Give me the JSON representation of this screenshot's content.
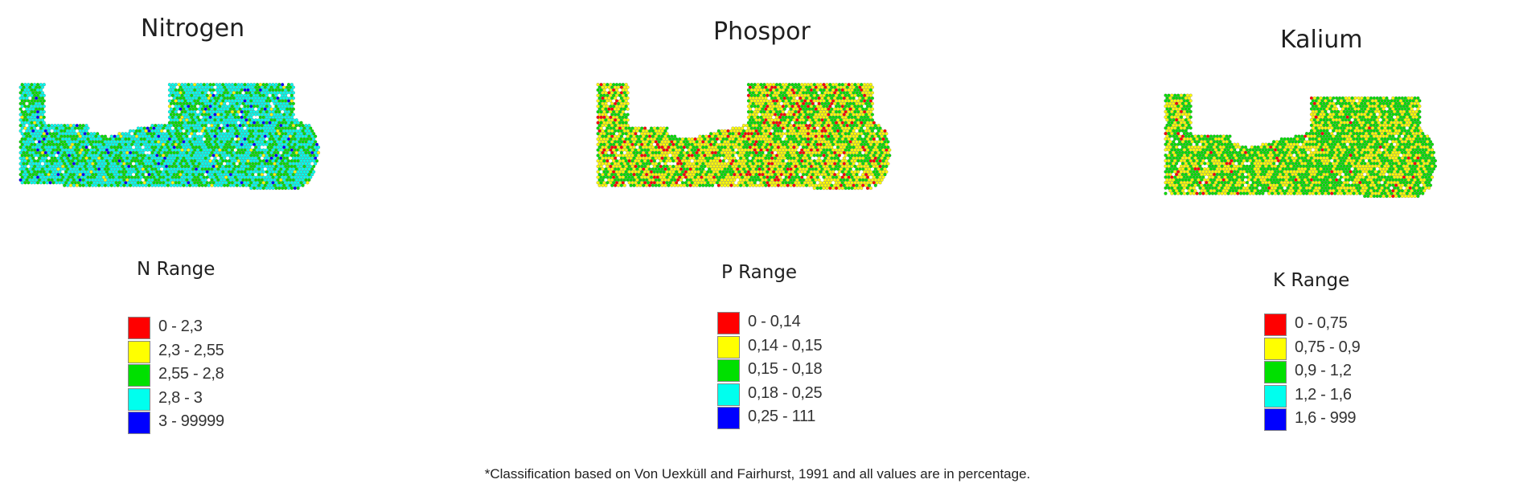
{
  "panels": [
    {
      "id": "nitrogen",
      "title": "Nitrogen",
      "range_title": "N Range",
      "legend": [
        {
          "label": "0 - 2,3",
          "color": "#ff0000"
        },
        {
          "label": "2,3 - 2,55",
          "color": "#ffff00"
        },
        {
          "label": "2,55 - 2,8",
          "color": "#00e000"
        },
        {
          "label": "2,8 - 3",
          "color": "#00ffee"
        },
        {
          "label": "3 - 99999",
          "color": "#0000ff"
        }
      ],
      "map_colors": [
        "#00ffee",
        "#00e000",
        "#0000ff",
        "#ffff00"
      ]
    },
    {
      "id": "phosphor",
      "title": "Phospor",
      "range_title": "P Range",
      "legend": [
        {
          "label": "0 - 0,14",
          "color": "#ff0000"
        },
        {
          "label": "0,14 - 0,15",
          "color": "#ffff00"
        },
        {
          "label": "0,15 - 0,18",
          "color": "#00e000"
        },
        {
          "label": "0,18 - 0,25",
          "color": "#00ffee"
        },
        {
          "label": "0,25 - 111",
          "color": "#0000ff"
        }
      ],
      "map_colors": [
        "#ffff00",
        "#00e000",
        "#ff0000"
      ]
    },
    {
      "id": "kalium",
      "title": "Kalium",
      "range_title": "K Range",
      "legend": [
        {
          "label": "0 - 0,75",
          "color": "#ff0000"
        },
        {
          "label": "0,75 - 0,9",
          "color": "#ffff00"
        },
        {
          "label": "0,9 - 1,2",
          "color": "#00e000"
        },
        {
          "label": "1,2 - 1,6",
          "color": "#00ffee"
        },
        {
          "label": "1,6 - 999",
          "color": "#0000ff"
        }
      ],
      "map_colors": [
        "#00e000",
        "#ffff00",
        "#ff0000"
      ]
    }
  ],
  "footnote": "*Classification based on Von Uexküll and Fairhurst, 1991 and all values are in percentage."
}
